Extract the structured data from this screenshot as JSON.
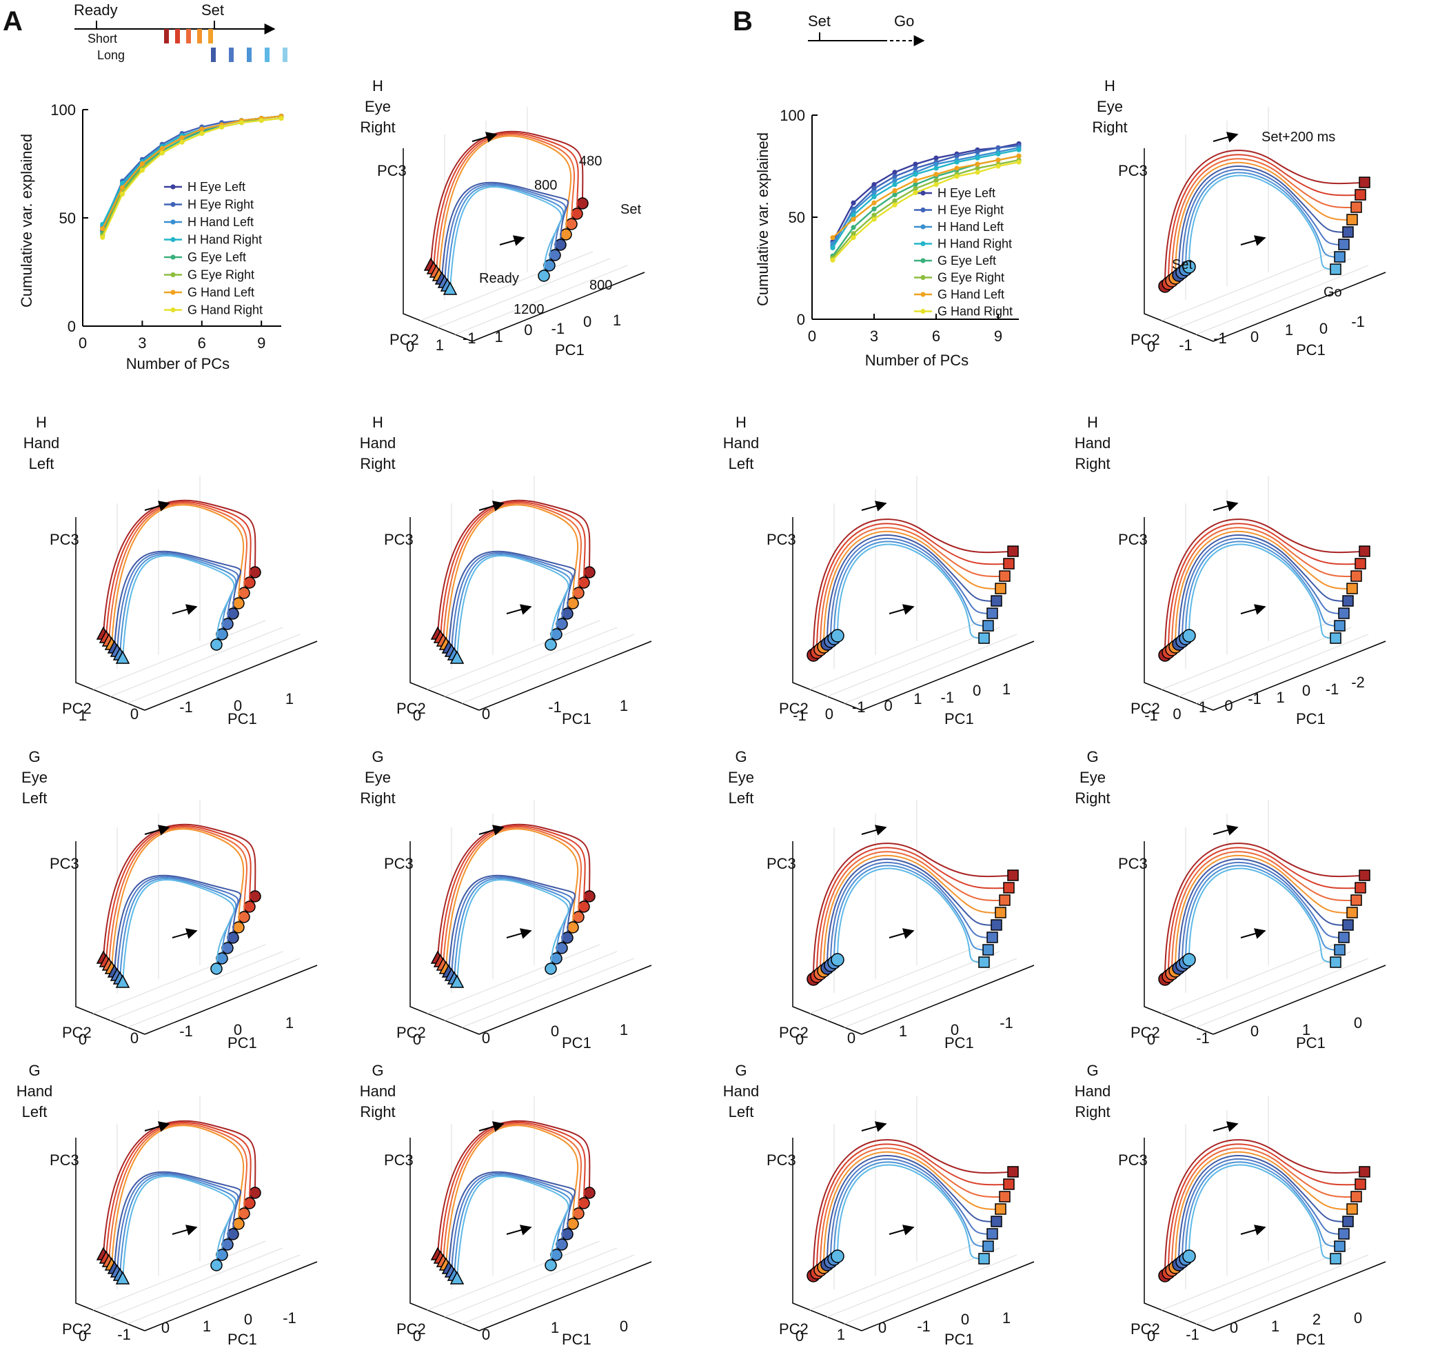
{
  "panels": {
    "A": "A",
    "B": "B"
  },
  "colors": {
    "short": [
      "#a82424",
      "#d9402b",
      "#ec6a3a",
      "#f3932c",
      "#f3a12c"
    ],
    "long": [
      "#3f5aa6",
      "#4f78c4",
      "#4d93d6",
      "#5db8e6",
      "#8fcfe9"
    ],
    "series": [
      "#3b3f9e",
      "#3f64b8",
      "#3a8fd0",
      "#22b5c8",
      "#3bb07b",
      "#8dbd3e",
      "#f0a21f",
      "#e6e12a"
    ]
  },
  "timeline_A": {
    "ready": "Ready",
    "set": "Set",
    "short": "Short",
    "long": "Long"
  },
  "timeline_B": {
    "set": "Set",
    "go": "Go"
  },
  "chart_data": [
    {
      "id": "A-var",
      "type": "line",
      "xlabel": "Number of PCs",
      "ylabel": "Cumulative var. explained",
      "xticks": [
        "0",
        "3",
        "6",
        "9"
      ],
      "yticks": [
        "0",
        "50",
        "100"
      ],
      "xlim": [
        0,
        10
      ],
      "ylim": [
        0,
        100
      ],
      "x": [
        1,
        2,
        3,
        4,
        5,
        6,
        7,
        8,
        9,
        10
      ],
      "legend_position": "bottom-right",
      "series": [
        {
          "name": "H Eye Left",
          "values": [
            44,
            66,
            76,
            83,
            88,
            91,
            93,
            95,
            96,
            97
          ]
        },
        {
          "name": "H Eye Right",
          "values": [
            46,
            67,
            77,
            84,
            89,
            92,
            94,
            95,
            96,
            97
          ]
        },
        {
          "name": "H Hand Left",
          "values": [
            45,
            65,
            75,
            82,
            87,
            90,
            93,
            95,
            96,
            97
          ]
        },
        {
          "name": "H Hand Right",
          "values": [
            47,
            66,
            76,
            83,
            88,
            91,
            93,
            95,
            96,
            97
          ]
        },
        {
          "name": "G Eye Left",
          "values": [
            43,
            63,
            74,
            81,
            86,
            90,
            92,
            94,
            96,
            97
          ]
        },
        {
          "name": "G Eye Right",
          "values": [
            42,
            62,
            73,
            80,
            85,
            89,
            92,
            94,
            95,
            96
          ]
        },
        {
          "name": "G Hand Left",
          "values": [
            45,
            64,
            75,
            82,
            87,
            91,
            93,
            95,
            96,
            97
          ]
        },
        {
          "name": "G Hand Right",
          "values": [
            41,
            61,
            72,
            80,
            85,
            89,
            92,
            94,
            95,
            96
          ]
        }
      ]
    },
    {
      "id": "B-var",
      "type": "line",
      "xlabel": "Number of PCs",
      "ylabel": "Cumulative var. explained",
      "xticks": [
        "0",
        "3",
        "6",
        "9"
      ],
      "yticks": [
        "0",
        "50",
        "100"
      ],
      "xlim": [
        0,
        10
      ],
      "ylim": [
        0,
        100
      ],
      "x": [
        1,
        2,
        3,
        4,
        5,
        6,
        7,
        8,
        9,
        10
      ],
      "legend_position": "bottom-right",
      "series": [
        {
          "name": "H Eye Left",
          "values": [
            38,
            57,
            66,
            72,
            76,
            79,
            81,
            83,
            84,
            86
          ]
        },
        {
          "name": "H Eye Right",
          "values": [
            36,
            54,
            64,
            70,
            74,
            77,
            80,
            82,
            84,
            85
          ]
        },
        {
          "name": "H Hand Left",
          "values": [
            37,
            53,
            62,
            68,
            72,
            76,
            78,
            80,
            82,
            84
          ]
        },
        {
          "name": "H Hand Right",
          "values": [
            35,
            51,
            60,
            66,
            71,
            74,
            77,
            79,
            81,
            83
          ]
        },
        {
          "name": "G Eye Left",
          "values": [
            31,
            45,
            54,
            61,
            66,
            70,
            73,
            76,
            78,
            80
          ]
        },
        {
          "name": "G Eye Right",
          "values": [
            30,
            42,
            51,
            58,
            64,
            68,
            71,
            74,
            76,
            78
          ]
        },
        {
          "name": "G Hand Left",
          "values": [
            40,
            49,
            57,
            63,
            68,
            71,
            74,
            76,
            78,
            80
          ]
        },
        {
          "name": "G Hand Right",
          "values": [
            29,
            40,
            49,
            56,
            62,
            66,
            70,
            72,
            75,
            77
          ]
        }
      ]
    }
  ],
  "subplots": [
    {
      "id": "A1",
      "title": [
        "H",
        "Eye",
        "Right"
      ],
      "axes": [
        "PC1",
        "PC2",
        "PC3"
      ],
      "ticks": [
        "0",
        "1",
        "-1",
        "1",
        "0",
        "-1",
        "0",
        "1"
      ],
      "notes": [
        "480",
        "800",
        "Set",
        "Ready",
        "1200",
        "800"
      ]
    },
    {
      "id": "A2",
      "title": [
        "H",
        "Hand",
        "Left"
      ],
      "axes": [
        "PC1",
        "PC2",
        "PC3"
      ],
      "ticks": [
        "1",
        "0",
        "-1",
        "0",
        "1"
      ]
    },
    {
      "id": "A3",
      "title": [
        "H",
        "Hand",
        "Right"
      ],
      "axes": [
        "PC1",
        "PC2",
        "PC3"
      ],
      "ticks": [
        "0",
        "0",
        "-1",
        "1"
      ]
    },
    {
      "id": "A4",
      "title": [
        "G",
        "Eye",
        "Left"
      ],
      "axes": [
        "PC1",
        "PC2",
        "PC3"
      ],
      "ticks": [
        "0",
        "0",
        "-1",
        "0",
        "1"
      ]
    },
    {
      "id": "A5",
      "title": [
        "G",
        "Eye",
        "Right"
      ],
      "axes": [
        "PC1",
        "PC2",
        "PC3"
      ],
      "ticks": [
        "0",
        "0",
        "0",
        "1"
      ]
    },
    {
      "id": "A6",
      "title": [
        "G",
        "Hand",
        "Left"
      ],
      "axes": [
        "PC1",
        "PC2",
        "PC3"
      ],
      "ticks": [
        "0",
        "-1",
        "0",
        "1",
        "0",
        "-1"
      ]
    },
    {
      "id": "A7",
      "title": [
        "G",
        "Hand",
        "Right"
      ],
      "axes": [
        "PC1",
        "PC2",
        "PC3"
      ],
      "ticks": [
        "0",
        "0",
        "1",
        "0"
      ]
    },
    {
      "id": "B1",
      "title": [
        "H",
        "Eye",
        "Right"
      ],
      "axes": [
        "PC1",
        "PC2",
        "PC3"
      ],
      "ticks": [
        "0",
        "-1",
        "-1",
        "0",
        "1",
        "0",
        "-1"
      ],
      "notes": [
        "Set+200 ms",
        "Set",
        "Go"
      ]
    },
    {
      "id": "B2",
      "title": [
        "H",
        "Hand",
        "Left"
      ],
      "axes": [
        "PC1",
        "PC2",
        "PC3"
      ],
      "ticks": [
        "-1",
        "0",
        "-1",
        "0",
        "1",
        "-1",
        "0",
        "1"
      ]
    },
    {
      "id": "B3",
      "title": [
        "H",
        "Hand",
        "Right"
      ],
      "axes": [
        "PC1",
        "PC2",
        "PC3"
      ],
      "ticks": [
        "-1",
        "0",
        "1",
        "0",
        "-1",
        "1",
        "0",
        "-1",
        "-2"
      ]
    },
    {
      "id": "B4",
      "title": [
        "G",
        "Eye",
        "Left"
      ],
      "axes": [
        "PC1",
        "PC2",
        "PC3"
      ],
      "ticks": [
        "0",
        "0",
        "1",
        "0",
        "-1"
      ]
    },
    {
      "id": "B5",
      "title": [
        "G",
        "Eye",
        "Right"
      ],
      "axes": [
        "PC1",
        "PC2",
        "PC3"
      ],
      "ticks": [
        "0",
        "-1",
        "0",
        "1",
        "0"
      ]
    },
    {
      "id": "B6",
      "title": [
        "G",
        "Hand",
        "Left"
      ],
      "axes": [
        "PC1",
        "PC2",
        "PC3"
      ],
      "ticks": [
        "0",
        "1",
        "0",
        "-1",
        "0",
        "1"
      ]
    },
    {
      "id": "B7",
      "title": [
        "G",
        "Hand",
        "Right"
      ],
      "axes": [
        "PC1",
        "PC2",
        "PC3"
      ],
      "ticks": [
        "0",
        "-1",
        "0",
        "1",
        "2",
        "0"
      ]
    }
  ]
}
